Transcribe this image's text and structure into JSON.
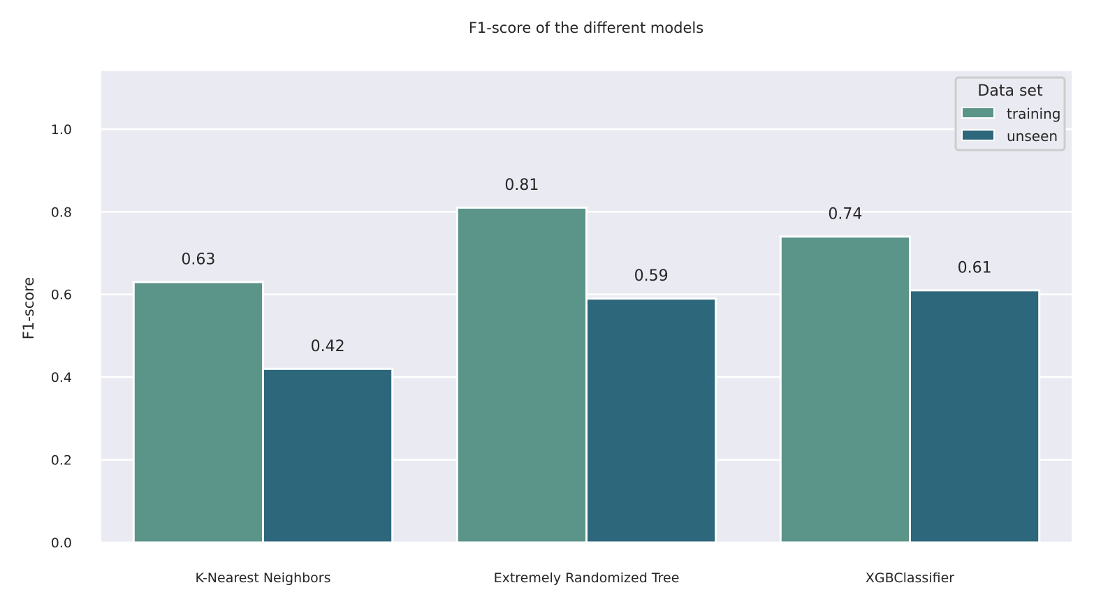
{
  "chart_data": {
    "type": "bar",
    "title": "F1-score of the different models",
    "xlabel": "",
    "ylabel": "F1-score",
    "categories": [
      "K-Nearest Neighbors",
      "Extremely Randomized Tree",
      "XGBClassifier"
    ],
    "series": [
      {
        "name": "training",
        "values": [
          0.63,
          0.81,
          0.74
        ],
        "color": "#5b9489"
      },
      {
        "name": "unseen",
        "values": [
          0.42,
          0.59,
          0.61
        ],
        "color": "#2d677b"
      }
    ],
    "data_labels": [
      "0.63",
      "0.81",
      "0.74",
      "0.42",
      "0.59",
      "0.61"
    ],
    "ylim": [
      0,
      1.14
    ],
    "yticks": [
      0.0,
      0.2,
      0.4,
      0.6,
      0.8,
      1.0
    ],
    "ytick_labels": [
      "0.0",
      "0.2",
      "0.4",
      "0.6",
      "0.8",
      "1.0"
    ],
    "grid": true,
    "legend": {
      "title": "Data set",
      "placement": "top-right"
    },
    "colors": {
      "background": "#eaeaf2",
      "grid": "#ffffff"
    }
  }
}
